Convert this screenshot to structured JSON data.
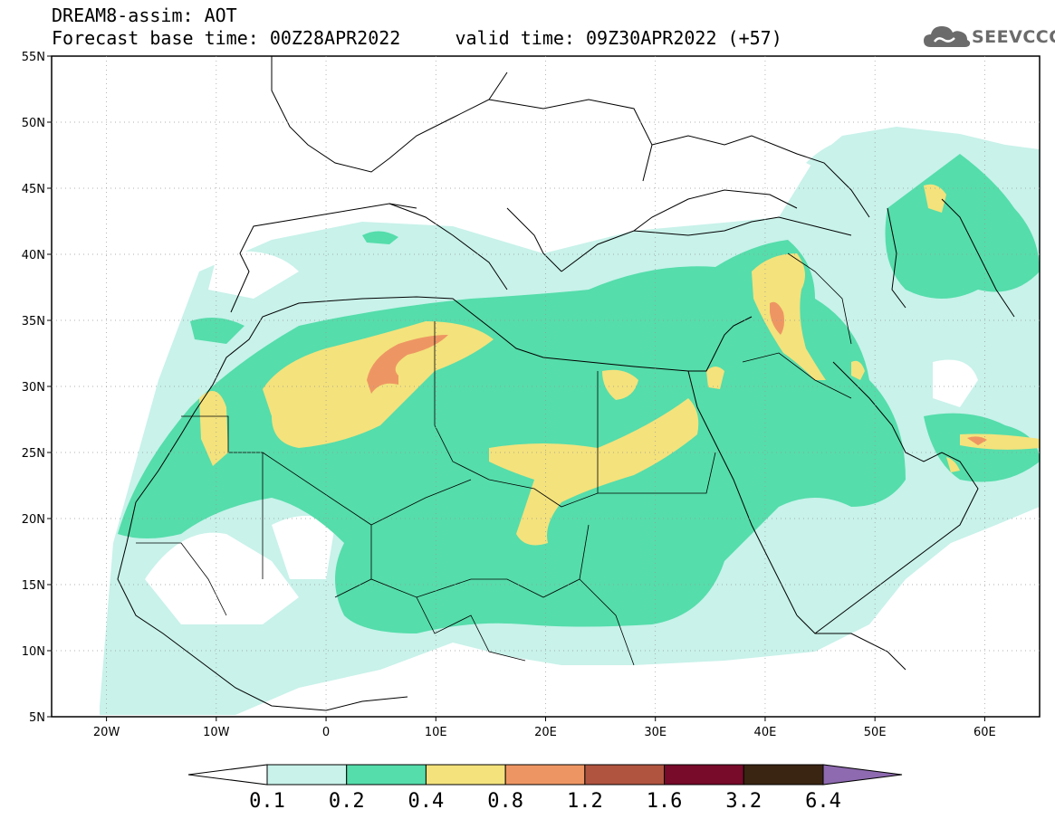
{
  "header": {
    "title_line1": "DREAM8-assim: AOT",
    "title_line2": "Forecast base time: 00Z28APR2022     valid time: 09Z30APR2022 (+57)"
  },
  "logo": {
    "text": "SEEVCCC",
    "icon": "cloud-icon"
  },
  "map": {
    "lat_labels": [
      "55N",
      "50N",
      "45N",
      "40N",
      "35N",
      "30N",
      "25N",
      "20N",
      "15N",
      "10N",
      "5N"
    ],
    "lon_labels": [
      "20W",
      "10W",
      "0",
      "10E",
      "20E",
      "30E",
      "40E",
      "50E",
      "60E"
    ],
    "lon_range": [
      -25,
      65
    ],
    "lat_range": [
      5,
      55
    ],
    "grid": "dotted"
  },
  "colorbar": {
    "thresholds": [
      "0.1",
      "0.2",
      "0.4",
      "0.8",
      "1.2",
      "1.6",
      "3.2",
      "6.4"
    ],
    "colors": [
      "#c8f2ea",
      "#55ddab",
      "#f4e27c",
      "#ee9663",
      "#b05440",
      "#780a2a",
      "#3a2512",
      "#8e6ab0"
    ]
  }
}
